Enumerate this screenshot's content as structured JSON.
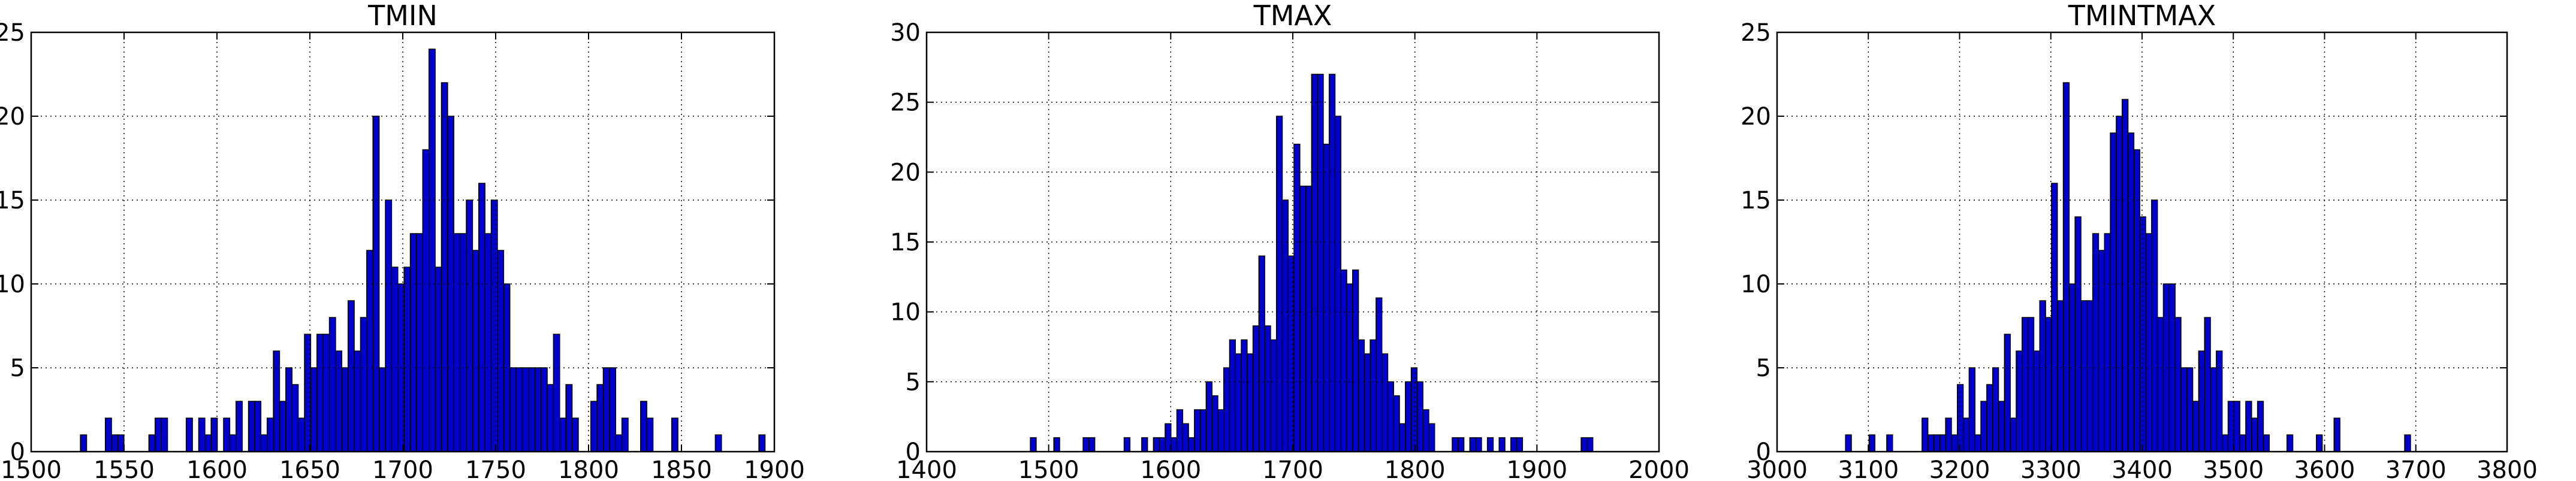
{
  "chart_data": [
    {
      "type": "bar",
      "title": "TMIN",
      "xlim": [
        1500,
        1900
      ],
      "ylim": [
        0,
        25
      ],
      "xticks": [
        1500,
        1550,
        1600,
        1650,
        1700,
        1750,
        1800,
        1850,
        1900
      ],
      "yticks": [
        0,
        5,
        10,
        15,
        20,
        25
      ],
      "grid": true,
      "bar_color": "#0000CC",
      "bar_edge": "#000000",
      "bins": {
        "start": 1526.5,
        "width": 3.35,
        "counts": [
          1,
          0,
          0,
          0,
          2,
          1,
          1,
          0,
          0,
          0,
          0,
          1,
          2,
          2,
          0,
          0,
          0,
          2,
          0,
          2,
          1,
          2,
          0,
          2,
          1,
          3,
          0,
          3,
          3,
          1,
          2,
          6,
          3,
          5,
          4,
          2,
          7,
          5,
          7,
          7,
          8,
          6,
          5,
          9,
          6,
          8,
          12,
          20,
          5,
          15,
          11,
          10,
          11,
          13,
          13,
          18,
          24,
          11,
          22,
          20,
          13,
          13,
          15,
          12,
          16,
          13,
          15,
          12,
          10,
          5,
          5,
          5,
          5,
          5,
          5,
          4,
          7,
          2,
          4,
          2,
          0,
          0,
          3,
          4,
          5,
          5,
          1,
          2,
          0,
          0,
          3,
          2,
          0,
          0,
          0,
          2,
          0,
          0,
          0,
          0,
          0,
          0,
          1,
          0,
          0,
          0,
          0,
          0,
          0,
          1
        ]
      }
    },
    {
      "type": "bar",
      "title": "TMAX",
      "xlim": [
        1400,
        2000
      ],
      "ylim": [
        0,
        30
      ],
      "xticks": [
        1400,
        1500,
        1600,
        1700,
        1800,
        1900,
        2000
      ],
      "yticks": [
        0,
        5,
        10,
        15,
        20,
        25,
        30
      ],
      "grid": true,
      "bar_color": "#0000CC",
      "bar_edge": "#000000",
      "bins": {
        "start": 1485,
        "width": 4.8,
        "counts": [
          1,
          0,
          0,
          0,
          1,
          0,
          0,
          0,
          0,
          1,
          1,
          0,
          0,
          0,
          0,
          0,
          1,
          0,
          0,
          1,
          0,
          1,
          1,
          2,
          1,
          3,
          2,
          1,
          3,
          3,
          5,
          4,
          3,
          6,
          8,
          7,
          8,
          7,
          9,
          14,
          9,
          8,
          24,
          18,
          14,
          22,
          19,
          19,
          27,
          27,
          22,
          27,
          24,
          13,
          12,
          13,
          8,
          7,
          8,
          11,
          7,
          5,
          4,
          2,
          5,
          6,
          5,
          3,
          2,
          0,
          0,
          0,
          1,
          1,
          0,
          1,
          1,
          0,
          1,
          0,
          1,
          0,
          1,
          1,
          0,
          0,
          0,
          0,
          0,
          0,
          0,
          0,
          0,
          0,
          1,
          1
        ]
      }
    },
    {
      "type": "bar",
      "title": "TMINTMAX",
      "xlim": [
        3000,
        3800
      ],
      "ylim": [
        0,
        25
      ],
      "xticks": [
        3000,
        3100,
        3200,
        3300,
        3400,
        3500,
        3600,
        3700,
        3800
      ],
      "yticks": [
        0,
        5,
        10,
        15,
        20,
        25
      ],
      "grid": true,
      "bar_color": "#0000CC",
      "bar_edge": "#000000",
      "bins": {
        "start": 3075,
        "width": 6.45,
        "counts": [
          1,
          0,
          0,
          0,
          1,
          0,
          0,
          1,
          0,
          0,
          0,
          0,
          0,
          2,
          1,
          1,
          1,
          2,
          1,
          4,
          2,
          5,
          1,
          3,
          4,
          5,
          3,
          7,
          2,
          6,
          8,
          8,
          6,
          9,
          8,
          16,
          9,
          22,
          10,
          14,
          9,
          9,
          13,
          12,
          13,
          19,
          20,
          21,
          19,
          18,
          14,
          13,
          15,
          8,
          10,
          10,
          8,
          5,
          5,
          3,
          6,
          8,
          5,
          6,
          1,
          3,
          3,
          1,
          3,
          2,
          3,
          1,
          0,
          0,
          0,
          1,
          0,
          0,
          0,
          0,
          1,
          0,
          0,
          2,
          0,
          0,
          0,
          0,
          0,
          0,
          0,
          0,
          0,
          0,
          0,
          1
        ]
      }
    }
  ]
}
